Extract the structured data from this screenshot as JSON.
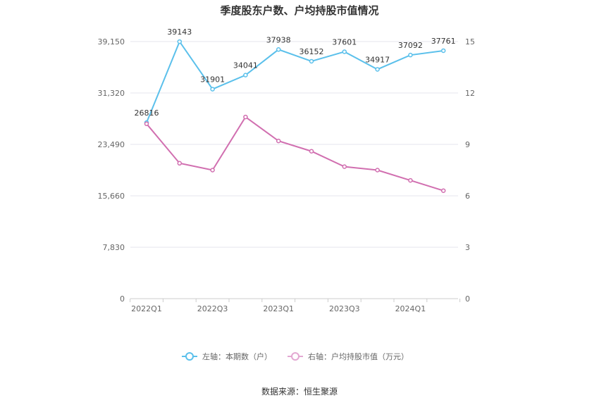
{
  "chart_data": {
    "type": "line",
    "title": "季度股东户数、户均持股市值情况",
    "x": [
      "2022Q1",
      "2022Q2",
      "2022Q3",
      "2022Q4",
      "2023Q1",
      "2023Q2",
      "2023Q3",
      "2023Q4",
      "2024Q1",
      "2024Q2"
    ],
    "x_tick_labels": [
      "2022Q1",
      "2022Q3",
      "2023Q1",
      "2023Q3",
      "2024Q1"
    ],
    "left_axis": {
      "ylim": [
        0,
        39150
      ],
      "ticks": [
        "0",
        "7,830",
        "15,660",
        "23,490",
        "31,320",
        "39,150"
      ]
    },
    "right_axis": {
      "ylim": [
        0,
        15
      ],
      "ticks": [
        "0",
        "3",
        "6",
        "9",
        "12",
        "15"
      ]
    },
    "series": [
      {
        "name": "左轴：本期数（户）",
        "axis": "left",
        "color": "#5bc0eb",
        "values": [
          26816,
          39143,
          31901,
          34041,
          37938,
          36152,
          37601,
          34917,
          37092,
          37761
        ],
        "labels": [
          "26816",
          "39143",
          "31901",
          "34041",
          "37938",
          "36152",
          "37601",
          "34917",
          "37092",
          "37761"
        ]
      },
      {
        "name": "右轴：户均持股市值（万元）",
        "axis": "right",
        "color": "#d16fb0",
        "values": [
          10.2,
          7.9,
          7.5,
          10.6,
          9.2,
          8.6,
          7.7,
          7.5,
          6.9,
          6.3
        ]
      }
    ],
    "grid": true,
    "legend_position": "bottom"
  },
  "source": "数据来源：恒生聚源"
}
